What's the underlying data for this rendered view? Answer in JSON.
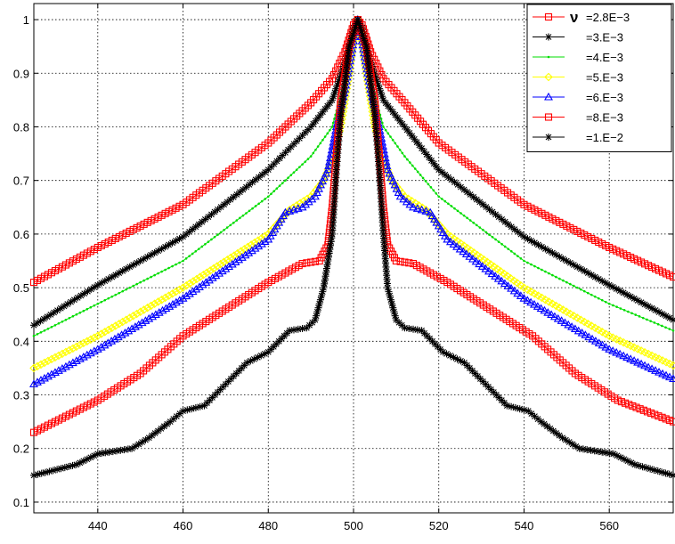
{
  "chart_data": {
    "type": "line",
    "title": "",
    "xlabel": "",
    "ylabel": "",
    "xlim": [
      425,
      575
    ],
    "ylim": [
      0.08,
      1.03
    ],
    "xticks": [
      440,
      460,
      480,
      500,
      520,
      540,
      560
    ],
    "yticks": [
      0.1,
      0.2,
      0.3,
      0.4,
      0.5,
      0.6,
      0.7,
      0.8,
      0.9,
      1
    ],
    "grid": true,
    "legend_position": "top-right",
    "legend_symbol": "ν",
    "series": [
      {
        "name": "=2.8E−3",
        "color": "#ff0000",
        "marker": "square",
        "points": [
          [
            425,
            0.51
          ],
          [
            440,
            0.575
          ],
          [
            460,
            0.655
          ],
          [
            480,
            0.77
          ],
          [
            490,
            0.845
          ],
          [
            495,
            0.89
          ],
          [
            498,
            0.94
          ],
          [
            500,
            0.99
          ],
          [
            501,
            1.0
          ],
          [
            502,
            0.99
          ],
          [
            504,
            0.94
          ],
          [
            507,
            0.89
          ],
          [
            512,
            0.845
          ],
          [
            520,
            0.77
          ],
          [
            540,
            0.655
          ],
          [
            560,
            0.575
          ],
          [
            575,
            0.52
          ]
        ]
      },
      {
        "name": "=3.E−3",
        "color": "#000000",
        "marker": "star",
        "points": [
          [
            425,
            0.43
          ],
          [
            440,
            0.505
          ],
          [
            460,
            0.595
          ],
          [
            480,
            0.72
          ],
          [
            490,
            0.8
          ],
          [
            495,
            0.85
          ],
          [
            498,
            0.92
          ],
          [
            500,
            0.985
          ],
          [
            501,
            1.0
          ],
          [
            502,
            0.985
          ],
          [
            504,
            0.92
          ],
          [
            507,
            0.85
          ],
          [
            512,
            0.8
          ],
          [
            520,
            0.72
          ],
          [
            540,
            0.595
          ],
          [
            560,
            0.505
          ],
          [
            575,
            0.44
          ]
        ]
      },
      {
        "name": "=4.E−3",
        "color": "#00dd00",
        "marker": "dot",
        "points": [
          [
            425,
            0.41
          ],
          [
            440,
            0.47
          ],
          [
            460,
            0.55
          ],
          [
            480,
            0.67
          ],
          [
            490,
            0.745
          ],
          [
            495,
            0.8
          ],
          [
            498,
            0.89
          ],
          [
            500,
            0.975
          ],
          [
            501,
            1.0
          ],
          [
            502,
            0.975
          ],
          [
            504,
            0.89
          ],
          [
            507,
            0.8
          ],
          [
            512,
            0.745
          ],
          [
            520,
            0.67
          ],
          [
            540,
            0.55
          ],
          [
            560,
            0.47
          ],
          [
            575,
            0.42
          ]
        ]
      },
      {
        "name": "=5.E−3",
        "color": "#ffff00",
        "marker": "diamond",
        "points": [
          [
            425,
            0.35
          ],
          [
            440,
            0.41
          ],
          [
            460,
            0.5
          ],
          [
            480,
            0.6
          ],
          [
            485,
            0.645
          ],
          [
            490,
            0.67
          ],
          [
            493,
            0.7
          ],
          [
            495,
            0.74
          ],
          [
            497,
            0.8
          ],
          [
            499,
            0.9
          ],
          [
            500,
            0.96
          ],
          [
            501,
            1.0
          ],
          [
            502,
            0.96
          ],
          [
            503,
            0.9
          ],
          [
            505,
            0.8
          ],
          [
            507,
            0.74
          ],
          [
            509,
            0.7
          ],
          [
            512,
            0.67
          ],
          [
            517,
            0.645
          ],
          [
            522,
            0.6
          ],
          [
            540,
            0.5
          ],
          [
            560,
            0.41
          ],
          [
            575,
            0.355
          ]
        ]
      },
      {
        "name": "=6.E−3",
        "color": "#0000ff",
        "marker": "triangle",
        "points": [
          [
            425,
            0.32
          ],
          [
            440,
            0.385
          ],
          [
            460,
            0.48
          ],
          [
            480,
            0.59
          ],
          [
            484,
            0.64
          ],
          [
            488,
            0.65
          ],
          [
            491,
            0.67
          ],
          [
            494,
            0.72
          ],
          [
            496,
            0.8
          ],
          [
            498,
            0.87
          ],
          [
            500,
            0.96
          ],
          [
            501,
            1.0
          ],
          [
            502,
            0.96
          ],
          [
            504,
            0.87
          ],
          [
            506,
            0.8
          ],
          [
            508,
            0.72
          ],
          [
            511,
            0.67
          ],
          [
            514,
            0.65
          ],
          [
            518,
            0.64
          ],
          [
            522,
            0.59
          ],
          [
            540,
            0.48
          ],
          [
            560,
            0.385
          ],
          [
            575,
            0.33
          ]
        ]
      },
      {
        "name": "=8.E−3",
        "color": "#ff0000",
        "marker": "square",
        "points": [
          [
            425,
            0.23
          ],
          [
            440,
            0.29
          ],
          [
            450,
            0.34
          ],
          [
            460,
            0.41
          ],
          [
            470,
            0.46
          ],
          [
            480,
            0.51
          ],
          [
            488,
            0.545
          ],
          [
            492,
            0.55
          ],
          [
            494,
            0.58
          ],
          [
            495,
            0.65
          ],
          [
            496,
            0.75
          ],
          [
            497,
            0.85
          ],
          [
            499,
            0.95
          ],
          [
            501,
            1.0
          ],
          [
            503,
            0.95
          ],
          [
            505,
            0.85
          ],
          [
            506,
            0.75
          ],
          [
            507,
            0.65
          ],
          [
            508,
            0.58
          ],
          [
            510,
            0.55
          ],
          [
            514,
            0.545
          ],
          [
            522,
            0.51
          ],
          [
            532,
            0.46
          ],
          [
            542,
            0.41
          ],
          [
            552,
            0.34
          ],
          [
            562,
            0.29
          ],
          [
            575,
            0.25
          ]
        ]
      },
      {
        "name": "=1.E−2",
        "color": "#000000",
        "marker": "star",
        "points": [
          [
            425,
            0.15
          ],
          [
            435,
            0.17
          ],
          [
            440,
            0.19
          ],
          [
            448,
            0.2
          ],
          [
            452,
            0.22
          ],
          [
            457,
            0.25
          ],
          [
            460,
            0.27
          ],
          [
            465,
            0.28
          ],
          [
            470,
            0.32
          ],
          [
            475,
            0.36
          ],
          [
            480,
            0.38
          ],
          [
            485,
            0.42
          ],
          [
            489,
            0.425
          ],
          [
            491,
            0.44
          ],
          [
            493,
            0.5
          ],
          [
            495,
            0.6
          ],
          [
            496,
            0.72
          ],
          [
            497,
            0.82
          ],
          [
            499,
            0.95
          ],
          [
            501,
            1.0
          ],
          [
            503,
            0.95
          ],
          [
            505,
            0.82
          ],
          [
            506,
            0.72
          ],
          [
            507,
            0.6
          ],
          [
            508,
            0.5
          ],
          [
            510,
            0.44
          ],
          [
            512,
            0.425
          ],
          [
            516,
            0.42
          ],
          [
            521,
            0.38
          ],
          [
            526,
            0.36
          ],
          [
            531,
            0.32
          ],
          [
            536,
            0.28
          ],
          [
            541,
            0.27
          ],
          [
            544,
            0.25
          ],
          [
            549,
            0.22
          ],
          [
            553,
            0.2
          ],
          [
            561,
            0.19
          ],
          [
            566,
            0.17
          ],
          [
            575,
            0.15
          ]
        ]
      }
    ]
  }
}
